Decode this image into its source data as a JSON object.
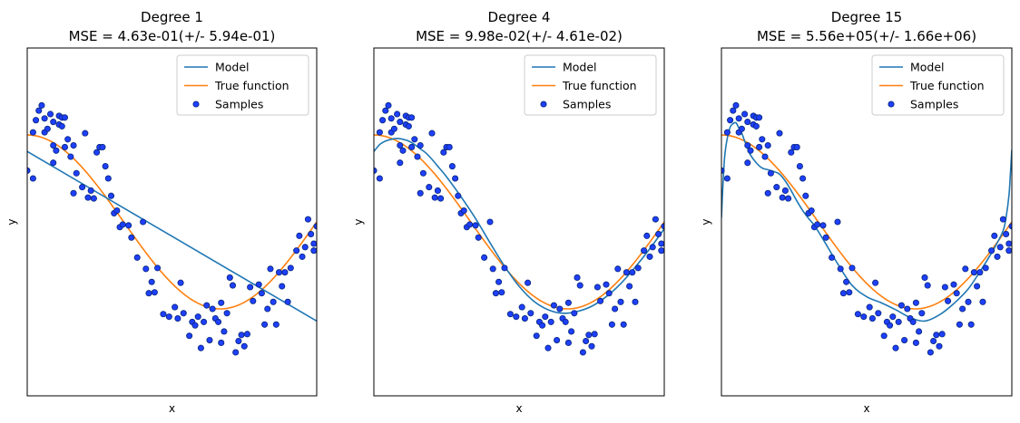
{
  "chart_data": [
    {
      "type": "line",
      "title": "Degree 1",
      "subtitle": "MSE = 4.63e-01(+/- 5.94e-01)",
      "xlabel": "x",
      "ylabel": "y",
      "xlim": [
        0,
        1
      ],
      "ylim": [
        -2,
        2
      ],
      "grid": false,
      "ticks_shown": false,
      "legend": {
        "placement": "upper-right",
        "entries": [
          "Model",
          "True function",
          "Samples"
        ]
      },
      "series": [
        {
          "name": "Model",
          "kind": "line",
          "color": "#1f77b4",
          "x": [
            0,
            1
          ],
          "y": [
            0.81,
            -1.14
          ]
        },
        {
          "name": "True function",
          "kind": "function",
          "color": "#ff7f0e",
          "expression": "cos(1.5*pi*x)"
        },
        {
          "name": "Samples",
          "kind": "scatter",
          "color": "#1f3fff",
          "edge_color": "#0a2a80",
          "points": [
            [
              0.0,
              0.59
            ],
            [
              0.02,
              0.5
            ],
            [
              0.02,
              1.03
            ],
            [
              0.03,
              1.17
            ],
            [
              0.04,
              1.28
            ],
            [
              0.05,
              1.34
            ],
            [
              0.06,
              1.19
            ],
            [
              0.06,
              1.03
            ],
            [
              0.07,
              1.07
            ],
            [
              0.08,
              1.24
            ],
            [
              0.09,
              0.68
            ],
            [
              0.09,
              0.88
            ],
            [
              0.09,
              1.15
            ],
            [
              0.1,
              0.82
            ],
            [
              0.11,
              1.22
            ],
            [
              0.11,
              1.12
            ],
            [
              0.12,
              1.1
            ],
            [
              0.12,
              1.2
            ],
            [
              0.13,
              1.2
            ],
            [
              0.13,
              0.86
            ],
            [
              0.14,
              0.95
            ],
            [
              0.15,
              0.75
            ],
            [
              0.16,
              0.33
            ],
            [
              0.16,
              0.88
            ],
            [
              0.17,
              0.56
            ],
            [
              0.19,
              0.4
            ],
            [
              0.2,
              1.02
            ],
            [
              0.21,
              0.28
            ],
            [
              0.22,
              0.36
            ],
            [
              0.23,
              0.27
            ],
            [
              0.24,
              0.8
            ],
            [
              0.25,
              0.86
            ],
            [
              0.26,
              0.86
            ],
            [
              0.27,
              0.64
            ],
            [
              0.28,
              0.5
            ],
            [
              0.29,
              0.3
            ],
            [
              0.3,
              0.1
            ],
            [
              0.31,
              0.13
            ],
            [
              0.32,
              -0.06
            ],
            [
              0.33,
              -0.03
            ],
            [
              0.35,
              -0.04
            ],
            [
              0.36,
              -0.18
            ],
            [
              0.38,
              -0.41
            ],
            [
              0.4,
              0.0
            ],
            [
              0.41,
              -0.54
            ],
            [
              0.42,
              -0.82
            ],
            [
              0.43,
              -0.69
            ],
            [
              0.44,
              -0.81
            ],
            [
              0.45,
              -0.53
            ],
            [
              0.47,
              -1.06
            ],
            [
              0.49,
              -1.09
            ],
            [
              0.51,
              -0.98
            ],
            [
              0.52,
              -1.11
            ],
            [
              0.53,
              -0.7
            ],
            [
              0.54,
              -1.05
            ],
            [
              0.56,
              -1.31
            ],
            [
              0.57,
              -1.15
            ],
            [
              0.58,
              -1.19
            ],
            [
              0.59,
              -1.09
            ],
            [
              0.6,
              -1.45
            ],
            [
              0.61,
              -1.15
            ],
            [
              0.62,
              -0.96
            ],
            [
              0.63,
              -1.36
            ],
            [
              0.64,
              -1.0
            ],
            [
              0.65,
              -1.11
            ],
            [
              0.66,
              -1.15
            ],
            [
              0.67,
              -0.93
            ],
            [
              0.67,
              -1.39
            ],
            [
              0.68,
              -1.26
            ],
            [
              0.69,
              -1.05
            ],
            [
              0.7,
              -0.64
            ],
            [
              0.71,
              -0.73
            ],
            [
              0.72,
              -1.5
            ],
            [
              0.73,
              -1.37
            ],
            [
              0.74,
              -1.3
            ],
            [
              0.75,
              -1.43
            ],
            [
              0.76,
              -1.29
            ],
            [
              0.77,
              -0.75
            ],
            [
              0.78,
              -0.91
            ],
            [
              0.8,
              -0.72
            ],
            [
              0.81,
              -0.82
            ],
            [
              0.82,
              -1.18
            ],
            [
              0.83,
              -1.0
            ],
            [
              0.84,
              -0.54
            ],
            [
              0.85,
              -0.92
            ],
            [
              0.86,
              -1.18
            ],
            [
              0.87,
              -0.58
            ],
            [
              0.88,
              -0.74
            ],
            [
              0.89,
              -0.58
            ],
            [
              0.9,
              -0.92
            ],
            [
              0.91,
              -0.53
            ],
            [
              0.93,
              -0.33
            ],
            [
              0.94,
              -0.16
            ],
            [
              0.95,
              -0.4
            ],
            [
              0.96,
              -0.29
            ],
            [
              0.97,
              0.03
            ],
            [
              0.98,
              -0.14
            ],
            [
              0.99,
              -0.25
            ],
            [
              0.99,
              -0.33
            ],
            [
              1.0,
              -0.05
            ]
          ]
        }
      ]
    },
    {
      "type": "line",
      "title": "Degree 4",
      "subtitle": "MSE = 9.98e-02(+/- 4.61e-02)",
      "xlabel": "x",
      "ylabel": "y",
      "xlim": [
        0,
        1
      ],
      "ylim": [
        -2,
        2
      ],
      "grid": false,
      "ticks_shown": false,
      "legend": {
        "placement": "upper-right",
        "entries": [
          "Model",
          "True function",
          "Samples"
        ]
      },
      "series": [
        {
          "name": "Model",
          "kind": "line",
          "color": "#1f77b4",
          "x": [
            0,
            0.02,
            0.04,
            0.06,
            0.08,
            0.1,
            0.12,
            0.14,
            0.16,
            0.18,
            0.2,
            0.22,
            0.25,
            0.3,
            0.35,
            0.4,
            0.45,
            0.5,
            0.55,
            0.6,
            0.65,
            0.7,
            0.75,
            0.8,
            0.85,
            0.9,
            0.95,
            1.0
          ],
          "y": [
            0.81,
            0.89,
            0.93,
            0.95,
            0.96,
            0.95,
            0.93,
            0.89,
            0.84,
            0.79,
            0.72,
            0.64,
            0.52,
            0.29,
            0.04,
            -0.24,
            -0.51,
            -0.74,
            -0.91,
            -1.01,
            -1.05,
            -1.03,
            -0.97,
            -0.86,
            -0.71,
            -0.52,
            -0.31,
            -0.08
          ]
        },
        {
          "name": "True function",
          "kind": "function",
          "color": "#ff7f0e",
          "expression": "cos(1.5*pi*x)"
        },
        {
          "name": "Samples",
          "kind": "scatter",
          "color": "#1f3fff",
          "edge_color": "#0a2a80",
          "same_as_chart": 0
        }
      ]
    },
    {
      "type": "line",
      "title": "Degree 15",
      "subtitle": "MSE = 5.56e+05(+/- 1.66e+06)",
      "xlabel": "x",
      "ylabel": "y",
      "xlim": [
        0,
        1
      ],
      "ylim": [
        -2,
        2
      ],
      "grid": false,
      "ticks_shown": false,
      "legend": {
        "placement": "upper-right",
        "entries": [
          "Model",
          "True function",
          "Samples"
        ]
      },
      "series": [
        {
          "name": "Model",
          "kind": "line",
          "color": "#1f77b4",
          "x": [
            0,
            0.004,
            0.008,
            0.012,
            0.02,
            0.03,
            0.04,
            0.05,
            0.06,
            0.07,
            0.08,
            0.09,
            0.1,
            0.12,
            0.14,
            0.16,
            0.18,
            0.2,
            0.22,
            0.24,
            0.26,
            0.28,
            0.3,
            0.32,
            0.35,
            0.4,
            0.45,
            0.5,
            0.55,
            0.6,
            0.65,
            0.7,
            0.75,
            0.8,
            0.85,
            0.9,
            0.94,
            0.97,
            0.98,
            0.99,
            0.995,
            1.0
          ],
          "y": [
            0.05,
            0.35,
            0.6,
            0.78,
            0.96,
            1.09,
            1.13,
            1.14,
            1.08,
            1.02,
            0.93,
            0.85,
            0.77,
            0.68,
            0.62,
            0.6,
            0.58,
            0.55,
            0.47,
            0.36,
            0.24,
            0.13,
            0.04,
            -0.04,
            -0.2,
            -0.48,
            -0.73,
            -0.86,
            -0.93,
            -1.01,
            -1.1,
            -1.14,
            -1.07,
            -0.94,
            -0.77,
            -0.52,
            -0.3,
            -0.1,
            0.05,
            0.3,
            0.55,
            0.83
          ]
        },
        {
          "name": "True function",
          "kind": "function",
          "color": "#ff7f0e",
          "expression": "cos(1.5*pi*x)"
        },
        {
          "name": "Samples",
          "kind": "scatter",
          "color": "#1f3fff",
          "edge_color": "#0a2a80",
          "same_as_chart": 0
        }
      ]
    }
  ]
}
